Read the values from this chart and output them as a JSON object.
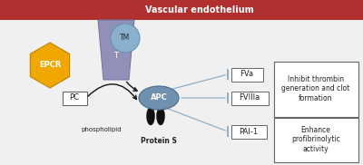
{
  "bg_color": "#f0f0f0",
  "endothelium_color": "#b03030",
  "endothelium_label": "Vascular endothelium",
  "epcr_color": "#f0a800",
  "epcr_label": "EPCR",
  "tm_color": "#8ab0d0",
  "tm_label": "TM",
  "t_color": "#9090b8",
  "t_label": "T",
  "apc_color": "#7090b0",
  "apc_label": "APC",
  "pc_label": "PC",
  "phospholipid_label": "phospholipid",
  "proteins_label": "Protein S",
  "fva_label": "FVa",
  "fviiia_label": "FVIIIa",
  "pai1_label": "PAI-1",
  "inhibit_text": "Inhibit thrombin\ngeneration and clot\nformation",
  "enhance_text": "Enhance\nprofibrinolytic\nactivity",
  "line_color": "#90b0c8",
  "arrow_color": "#111111",
  "text_color": "#222222",
  "box_edge_color": "#666666",
  "white": "#ffffff"
}
